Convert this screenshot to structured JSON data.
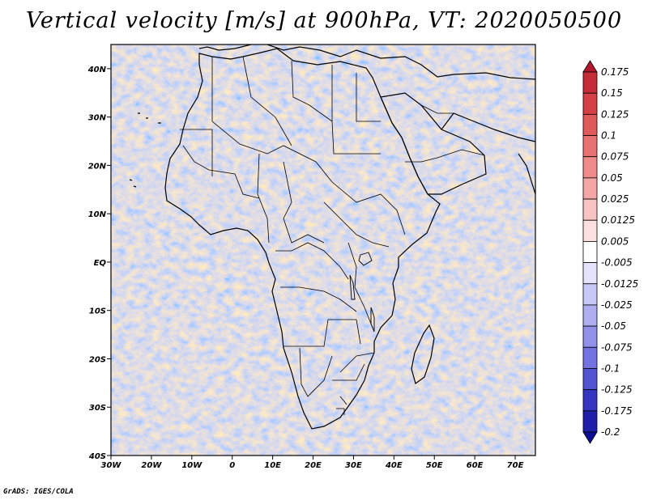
{
  "title": "Vertical velocity [m/s] at 900hPa, VT: 2020050500",
  "footer": "GrADS: IGES/COLA",
  "map": {
    "lon_range": [
      -30,
      75
    ],
    "lat_range": [
      -40,
      45
    ],
    "lon_ticks": [
      "30W",
      "20W",
      "10W",
      "0",
      "10E",
      "20E",
      "30E",
      "40E",
      "50E",
      "60E",
      "70E"
    ],
    "lon_values": [
      -30,
      -20,
      -10,
      0,
      10,
      20,
      30,
      40,
      50,
      60,
      70
    ],
    "lat_ticks": [
      "40N",
      "30N",
      "20N",
      "10N",
      "EQ",
      "10S",
      "20S",
      "30S",
      "40S"
    ],
    "lat_values": [
      40,
      30,
      20,
      10,
      0,
      -10,
      -20,
      -30,
      -40
    ]
  },
  "colorbar": {
    "labels": [
      "0.175",
      "0.15",
      "0.125",
      "0.1",
      "0.075",
      "0.05",
      "0.025",
      "0.0125",
      "0.005",
      "-0.005",
      "-0.0125",
      "-0.025",
      "-0.05",
      "-0.075",
      "-0.1",
      "-0.125",
      "-0.175",
      "-0.2"
    ],
    "colors": [
      "#b2182b",
      "#c42d35",
      "#d44045",
      "#e05a5a",
      "#e87272",
      "#ef8b8b",
      "#f4a6a6",
      "#f8c3c3",
      "#fce0e0",
      "#ffffff",
      "#e3e3fb",
      "#c8c8f6",
      "#aeaef0",
      "#9191ea",
      "#7272e0",
      "#5353d3",
      "#3535c2",
      "#1e1eab",
      "#0d0d96"
    ]
  }
}
